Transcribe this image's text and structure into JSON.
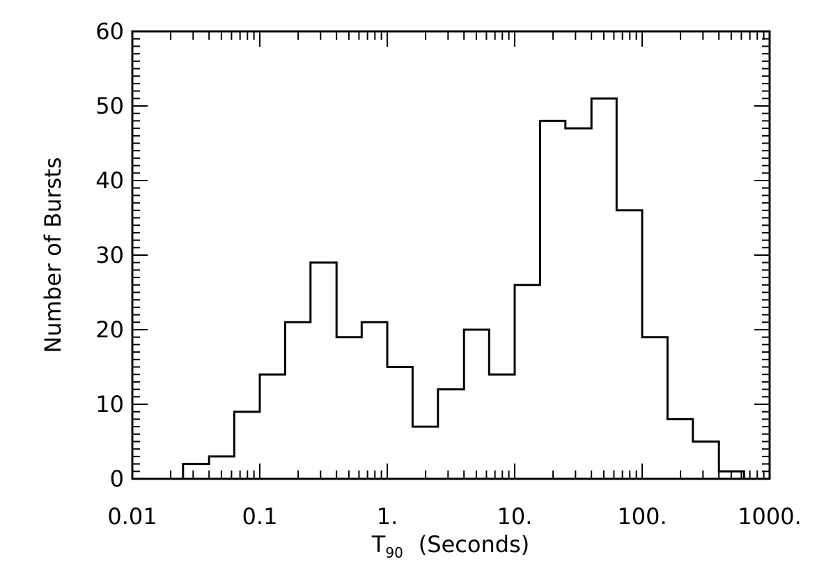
{
  "chart_data": {
    "type": "bar",
    "subtype": "histogram",
    "x_scale": "log",
    "xlabel_main": "T",
    "xlabel_sub": "90",
    "xlabel_rest": "(Seconds)",
    "ylabel": "Number of Bursts",
    "xlim": [
      0.01,
      1000
    ],
    "ylim": [
      0,
      60
    ],
    "x_ticks": [
      {
        "value": 0.01,
        "label": "0.01"
      },
      {
        "value": 0.1,
        "label": "0.1"
      },
      {
        "value": 1,
        "label": "1."
      },
      {
        "value": 10,
        "label": "10."
      },
      {
        "value": 100,
        "label": "100."
      },
      {
        "value": 1000,
        "label": "1000."
      }
    ],
    "y_ticks": [
      {
        "value": 0,
        "label": "0"
      },
      {
        "value": 10,
        "label": "10"
      },
      {
        "value": 20,
        "label": "20"
      },
      {
        "value": 30,
        "label": "30"
      },
      {
        "value": 40,
        "label": "40"
      },
      {
        "value": 50,
        "label": "50"
      },
      {
        "value": 60,
        "label": "60"
      }
    ],
    "bin_edges": [
      0.025,
      0.04,
      0.063,
      0.1,
      0.158,
      0.25,
      0.4,
      0.63,
      1.0,
      1.58,
      2.5,
      4.0,
      6.3,
      10.0,
      15.8,
      25.0,
      40.0,
      63.0,
      100.0,
      158.0,
      250.0,
      400.0,
      630.0
    ],
    "counts": [
      2,
      3,
      9,
      14,
      21,
      29,
      19,
      21,
      15,
      7,
      12,
      20,
      14,
      26,
      48,
      47,
      51,
      36,
      19,
      8,
      5,
      1
    ],
    "grid": false,
    "legend": "none"
  }
}
